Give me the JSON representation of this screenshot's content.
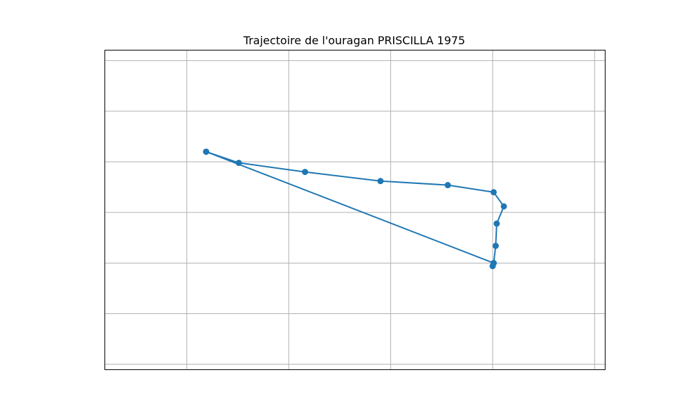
{
  "chart_data": {
    "type": "line",
    "title": "Trajectoire de l'ouragan PRISCILLA 1975",
    "xlabel": "",
    "ylabel": "",
    "grid": true,
    "xlim": [
      0,
      49
    ],
    "ylim": [
      0,
      31.5
    ],
    "series": [
      {
        "color": "#1f77b4",
        "marker": "circle",
        "points": [
          {
            "x": 9.9,
            "y": 21.5
          },
          {
            "x": 13.1,
            "y": 20.4
          },
          {
            "x": 19.6,
            "y": 19.5
          },
          {
            "x": 27.0,
            "y": 18.6
          },
          {
            "x": 33.6,
            "y": 18.2
          },
          {
            "x": 38.1,
            "y": 17.5
          },
          {
            "x": 39.1,
            "y": 16.1
          },
          {
            "x": 38.4,
            "y": 14.4
          },
          {
            "x": 38.3,
            "y": 12.2
          },
          {
            "x": 38.1,
            "y": 10.5
          },
          {
            "x": 38.0,
            "y": 10.2
          },
          {
            "x": 38.1,
            "y": 10.5
          },
          {
            "x": 9.9,
            "y": 21.5
          }
        ]
      }
    ]
  }
}
